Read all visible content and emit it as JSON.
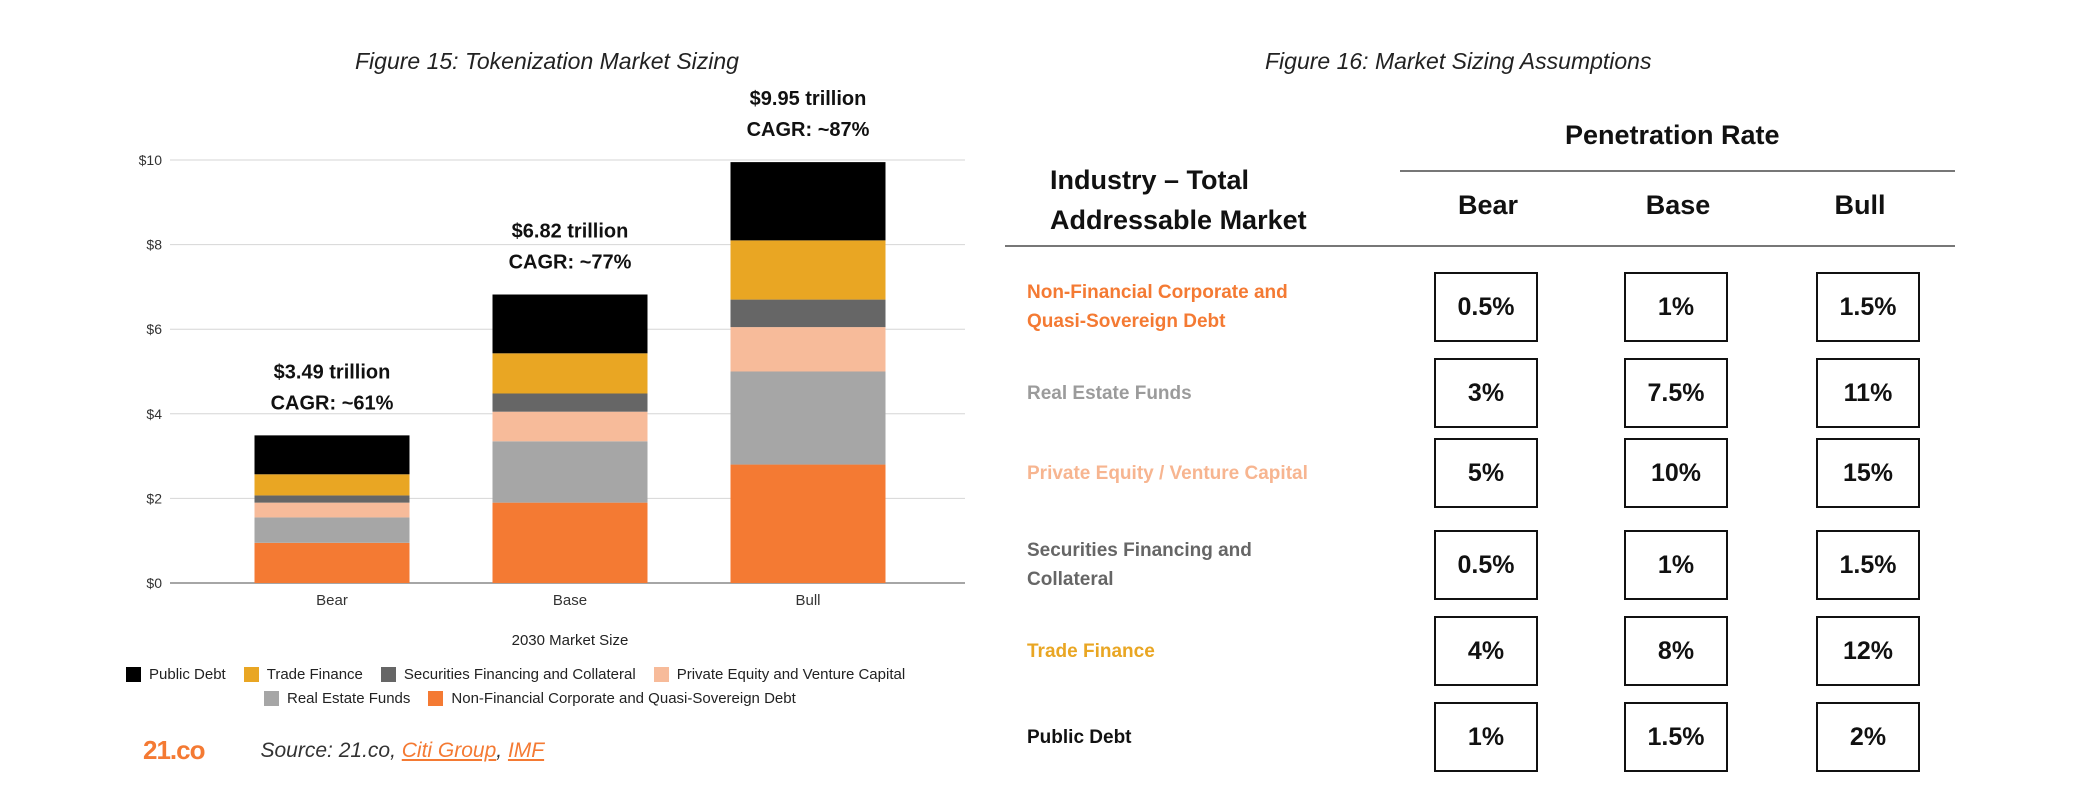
{
  "figure15": {
    "title": "Figure 15: Tokenization Market Sizing",
    "xlabel": "2030 Market Size",
    "bar_annotations": [
      {
        "line1": "$3.49 trillion",
        "line2": "CAGR: ~61%"
      },
      {
        "line1": "$6.82  trillion",
        "line2": "CAGR: ~77%"
      },
      {
        "line1": "$9.95  trillion",
        "line2": "CAGR: ~87%"
      }
    ],
    "legend_row1": [
      "Public Debt",
      "Trade Finance",
      "Securities Financing and Collateral",
      "Private Equity and Venture Capital"
    ],
    "legend_row2": [
      "Real Estate Funds",
      "Non-Financial Corporate and Quasi-Sovereign Debt"
    ],
    "logo": "21.co",
    "source_prefix": "Source: 21.co, ",
    "source_link1": "Citi Group",
    "source_sep": ", ",
    "source_link2": "IMF"
  },
  "chart_data": {
    "type": "bar",
    "stacked": true,
    "title": "Figure 15: Tokenization Market Sizing",
    "xlabel": "2030 Market Size",
    "categories": [
      "Bear",
      "Base",
      "Bull"
    ],
    "ylim": [
      0,
      10
    ],
    "yticks": [
      0,
      2,
      4,
      6,
      8,
      10
    ],
    "ytick_labels": [
      "$0",
      "$2",
      "$4",
      "$6",
      "$8",
      "$10"
    ],
    "grid": true,
    "series": [
      {
        "name": "Non-Financial Corporate and Quasi-Sovereign Debt",
        "color": "#f47a33",
        "values": [
          0.95,
          1.9,
          2.8
        ]
      },
      {
        "name": "Real Estate Funds",
        "color": "#a6a6a6",
        "values": [
          0.6,
          1.45,
          2.2
        ]
      },
      {
        "name": "Private Equity and Venture Capital",
        "color": "#f7bb9a",
        "values": [
          0.35,
          0.7,
          1.05
        ]
      },
      {
        "name": "Securities Financing and Collateral",
        "color": "#666666",
        "values": [
          0.17,
          0.43,
          0.65
        ]
      },
      {
        "name": "Trade Finance",
        "color": "#e9a623",
        "values": [
          0.5,
          0.95,
          1.4
        ]
      },
      {
        "name": "Public Debt",
        "color": "#000000",
        "values": [
          0.92,
          1.39,
          1.85
        ]
      }
    ],
    "totals": [
      3.49,
      6.82,
      9.95
    ]
  },
  "figure16": {
    "title": "Figure 16: Market Sizing Assumptions",
    "penetration_header": "Penetration Rate",
    "industry_header_line1": "Industry – Total",
    "industry_header_line2": "Addressable Market",
    "columns": [
      "Bear",
      "Base",
      "Bull"
    ],
    "rows": [
      {
        "label_line1": "Non-Financial Corporate and",
        "label_line2": "Quasi-Sovereign Debt",
        "color": "#f47a33",
        "values": [
          "0.5%",
          "1%",
          "1.5%"
        ]
      },
      {
        "label_line1": "Real Estate Funds",
        "label_line2": "",
        "color": "#9b9b9b",
        "values": [
          "3%",
          "7.5%",
          "11%"
        ]
      },
      {
        "label_line1": "Private Equity / Venture Capital",
        "label_line2": "",
        "color": "#f7b590",
        "values": [
          "5%",
          "10%",
          "15%"
        ]
      },
      {
        "label_line1": "Securities Financing and",
        "label_line2": "Collateral",
        "color": "#666666",
        "values": [
          "0.5%",
          "1%",
          "1.5%"
        ]
      },
      {
        "label_line1": "Trade Finance",
        "label_line2": "",
        "color": "#e9a623",
        "values": [
          "4%",
          "8%",
          "12%"
        ]
      },
      {
        "label_line1": "Public Debt",
        "label_line2": "",
        "color": "#111111",
        "values": [
          "1%",
          "1.5%",
          "2%"
        ]
      }
    ]
  }
}
